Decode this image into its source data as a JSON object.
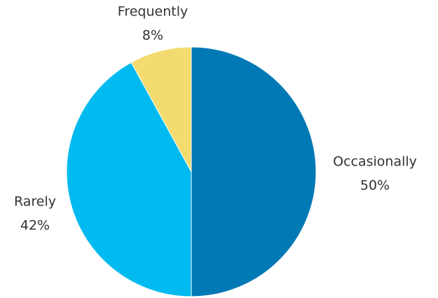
{
  "chart_data": {
    "type": "pie",
    "title": "",
    "start_angle_deg": 0,
    "direction": "clockwise",
    "slices": [
      {
        "label": "Occasionally",
        "value": 50,
        "display": "50%",
        "color": "#0079B5"
      },
      {
        "label": "Rarely",
        "value": 42,
        "display": "42%",
        "color": "#00BAF0"
      },
      {
        "label": "Frequently",
        "value": 8,
        "display": "8%",
        "color": "#F4DB6F"
      }
    ],
    "legend": "none",
    "data_labels": "outside"
  }
}
